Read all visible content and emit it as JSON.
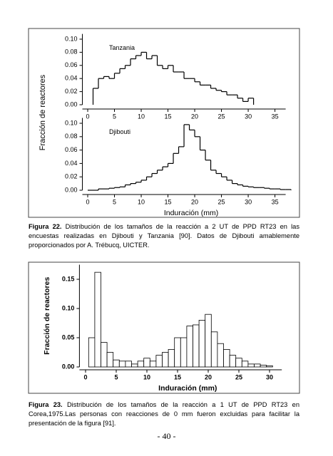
{
  "chart_data": [
    {
      "type": "histogram",
      "histtype": "step",
      "label": "Tanzania",
      "ylabel": "Fracción de reactores",
      "bins": [
        1,
        2,
        3,
        4,
        5,
        6,
        7,
        8,
        9,
        10,
        11,
        12,
        13,
        14,
        15,
        16,
        17,
        18,
        19,
        20,
        21,
        22,
        23,
        24,
        25,
        26,
        27,
        28,
        29,
        30,
        31
      ],
      "values": [
        0.025,
        0.04,
        0.043,
        0.04,
        0.048,
        0.055,
        0.06,
        0.07,
        0.075,
        0.08,
        0.07,
        0.075,
        0.06,
        0.055,
        0.06,
        0.05,
        0.05,
        0.04,
        0.04,
        0.035,
        0.03,
        0.03,
        0.025,
        0.022,
        0.02,
        0.015,
        0.015,
        0.01,
        0.005,
        0.01
      ],
      "color": "#000000",
      "xlim": [
        -1,
        37
      ],
      "xticks": [
        0,
        5,
        10,
        15,
        20,
        25,
        30,
        35
      ],
      "ylim": [
        0,
        0.108
      ],
      "yticks": [
        {
          "value": 0,
          "label": "0.00"
        },
        {
          "value": 0.02,
          "label": "0.02"
        },
        {
          "value": 0.04,
          "label": "0.04"
        },
        {
          "value": 0.06,
          "label": "0.06"
        },
        {
          "value": 0.08,
          "label": "0.08"
        },
        {
          "value": 0.1,
          "label": "0.10"
        }
      ]
    },
    {
      "type": "histogram",
      "histtype": "step",
      "label": "Djibouti",
      "xlabel": "Induración (mm)",
      "bins": [
        0,
        1,
        2,
        3,
        4,
        5,
        6,
        7,
        8,
        9,
        10,
        11,
        12,
        13,
        14,
        15,
        16,
        17,
        18,
        19,
        20,
        21,
        22,
        23,
        24,
        25,
        26,
        27,
        28,
        29,
        30,
        31,
        32,
        33,
        34,
        35,
        36,
        37,
        38
      ],
      "values": [
        0,
        0,
        0.002,
        0.002,
        0.003,
        0.004,
        0.005,
        0.008,
        0.01,
        0.012,
        0.015,
        0.02,
        0.025,
        0.03,
        0.035,
        0.04,
        0.055,
        0.065,
        0.098,
        0.09,
        0.08,
        0.06,
        0.045,
        0.03,
        0.025,
        0.02,
        0.015,
        0.01,
        0.008,
        0.006,
        0.005,
        0.004,
        0.004,
        0.003,
        0.002,
        0.002,
        0.001,
        0.001
      ],
      "color": "#000000",
      "xlim": [
        -1,
        37
      ],
      "xticks": [
        0,
        5,
        10,
        15,
        20,
        25,
        30,
        35
      ],
      "ylim": [
        0,
        0.108
      ],
      "yticks": [
        {
          "value": 0,
          "label": "0.00"
        },
        {
          "value": 0.02,
          "label": "0.02"
        },
        {
          "value": 0.04,
          "label": "0.04"
        },
        {
          "value": 0.06,
          "label": "0.06"
        },
        {
          "value": 0.08,
          "label": "0.08"
        },
        {
          "value": 0.1,
          "label": "0.10"
        }
      ]
    },
    {
      "type": "histogram",
      "histtype": "bar",
      "ylabel": "Fracción de reactores",
      "xlabel": "Induración (mm)",
      "bins": [
        0.5,
        1.5,
        2.5,
        3.5,
        4.5,
        5.5,
        6.5,
        7.5,
        8.5,
        9.5,
        10.5,
        11.5,
        12.5,
        13.5,
        14.5,
        15.5,
        16.5,
        17.5,
        18.5,
        19.5,
        20.5,
        21.5,
        22.5,
        23.5,
        24.5,
        25.5,
        26.5,
        27.5,
        28.5,
        29.5,
        30.5
      ],
      "values": [
        0.05,
        0.162,
        0.042,
        0.025,
        0.012,
        0.01,
        0.01,
        0.005,
        0.01,
        0.015,
        0.01,
        0.02,
        0.025,
        0.03,
        0.05,
        0.05,
        0.07,
        0.072,
        0.08,
        0.09,
        0.06,
        0.04,
        0.03,
        0.02,
        0.015,
        0.01,
        0.005,
        0.005,
        0.003,
        0.002
      ],
      "color": "#ffffff",
      "xlim": [
        -1,
        32
      ],
      "xticks": [
        0,
        5,
        10,
        15,
        20,
        25,
        30
      ],
      "ylim": [
        0,
        0.175
      ],
      "yticks": [
        {
          "value": 0,
          "label": "0.00"
        },
        {
          "value": 0.05,
          "label": "0.05"
        },
        {
          "value": 0.1,
          "label": "0.10"
        },
        {
          "value": 0.15,
          "label": "0.15"
        }
      ]
    }
  ],
  "captions": [
    {
      "label": "Figura 22.",
      "text": "Distribución de los tamaños de la reacción a 2 UT de PPD RT23 en las encuestas realizadas en Djibouti y Tanzania [90]. Datos de Djibouti amablemente proporcionados por A. Trébucq, UICTER."
    },
    {
      "label": "Figura 23.",
      "text": "Distribución de los tamaños de la reacción a 1 UT de PPD RT23 en Corea,1975.Las personas con reacciones de 0 mm fueron excluidas para facilitar la presentación de la figura [91]."
    }
  ],
  "page_number": "- 40 -"
}
